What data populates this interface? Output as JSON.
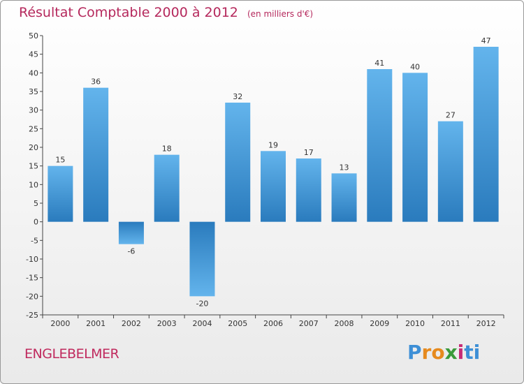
{
  "title": "Résultat Comptable 2000 à 2012",
  "subtitle": "(en milliers d'€)",
  "commune": "ENGLEBELMER",
  "logo": {
    "letters": [
      "P",
      "r",
      "o",
      "x",
      "i",
      "t",
      "i"
    ],
    "colors": [
      "#3d8fd6",
      "#e68a1e",
      "#e68a1e",
      "#3a9a3a",
      "#c62b75",
      "#3d8fd6",
      "#3d8fd6"
    ]
  },
  "colors": {
    "title": "#b5285c",
    "bar_light": "#63b4ec",
    "bar_dark": "#2a7bbd"
  },
  "chart_data": {
    "type": "bar",
    "title": "Résultat Comptable 2000 à 2012",
    "subtitle": "(en milliers d'€)",
    "xlabel": "",
    "ylabel": "",
    "categories": [
      "2000",
      "2001",
      "2002",
      "2003",
      "2004",
      "2005",
      "2006",
      "2007",
      "2008",
      "2009",
      "2010",
      "2011",
      "2012"
    ],
    "values": [
      15,
      36,
      -6,
      18,
      -20,
      32,
      19,
      17,
      13,
      41,
      40,
      27,
      47
    ],
    "ylim": [
      -25,
      50
    ],
    "yticks": [
      "50",
      "45",
      "40",
      "35",
      "30",
      "25",
      "20",
      "15",
      "10",
      "5",
      "0",
      "-5",
      "-10",
      "-15",
      "-20",
      "-25"
    ],
    "grid": false,
    "legend": "none"
  }
}
